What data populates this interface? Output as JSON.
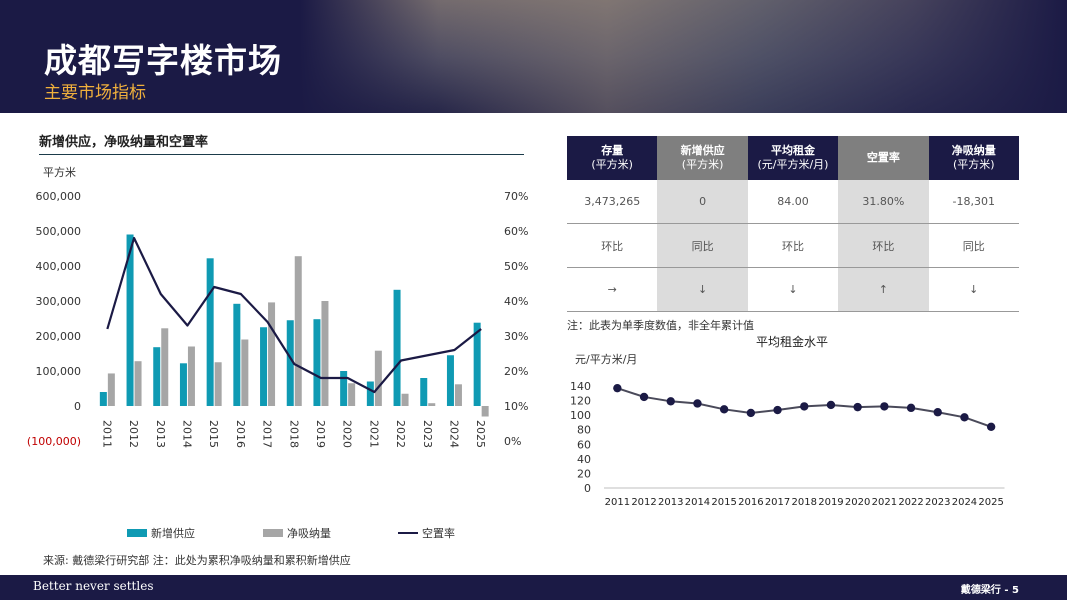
{
  "header": {
    "title": "成都写字楼市场",
    "subtitle": "主要市场指标"
  },
  "left_chart_title": "新增供应，净吸纳量和空置率",
  "colors": {
    "navy": "#1b1a45",
    "teal": "#0f9ab3",
    "grey": "#a6a6a6",
    "gold": "#f0b03c",
    "red": "#c00000"
  },
  "chart_data": [
    {
      "type": "bar",
      "categories": [
        "2011",
        "2012",
        "2013",
        "2014",
        "2015",
        "2016",
        "2017",
        "2018",
        "2019",
        "2020",
        "2021",
        "2022",
        "2023",
        "2024",
        "2025"
      ],
      "series": [
        {
          "name": "新增供应",
          "type": "bar",
          "axis": "left",
          "values": [
            40000,
            490000,
            168000,
            122000,
            422000,
            292000,
            225000,
            245000,
            248000,
            100000,
            70000,
            332000,
            80000,
            145000,
            238000
          ]
        },
        {
          "name": "净吸纳量",
          "type": "bar",
          "axis": "left",
          "values": [
            93000,
            128000,
            222000,
            170000,
            125000,
            190000,
            296000,
            428000,
            300000,
            65000,
            158000,
            35000,
            8000,
            62000,
            -30000
          ]
        },
        {
          "name": "空置率",
          "type": "line",
          "axis": "right",
          "values": [
            32,
            58,
            42,
            33,
            44,
            42,
            34,
            22,
            18,
            18,
            14,
            23,
            24.5,
            26,
            32
          ]
        }
      ],
      "ylabel": "平方米",
      "ylim": [
        -100000,
        600000
      ],
      "yticks": [
        "600,000",
        "500,000",
        "400,000",
        "300,000",
        "200,000",
        "100,000",
        "0",
        "(100,000)"
      ],
      "y2lim": [
        0,
        70
      ],
      "y2ticks": [
        "70%",
        "60%",
        "50%",
        "40%",
        "30%",
        "20%",
        "10%",
        "0%"
      ],
      "legend": "bottom"
    },
    {
      "type": "line",
      "title": "平均租金水平",
      "ylabel": "元/平方米/月",
      "categories": [
        "2011",
        "2012",
        "2013",
        "2014",
        "2015",
        "2016",
        "2017",
        "2018",
        "2019",
        "2020",
        "2021",
        "2022",
        "2023",
        "2024",
        "2025"
      ],
      "series": [
        {
          "values": [
            137,
            125,
            119,
            116,
            108,
            103,
            107,
            112,
            114,
            111,
            112,
            110,
            104,
            97,
            84
          ]
        }
      ],
      "ylim": [
        0,
        140
      ],
      "yticks": [
        "140",
        "120",
        "100",
        "80",
        "60",
        "40",
        "20",
        "0"
      ]
    }
  ],
  "legend": {
    "supply": "新增供应",
    "absorption": "净吸纳量",
    "vacancy": "空置率"
  },
  "table": {
    "headers": [
      {
        "label": "存量",
        "sub": "(平方米)"
      },
      {
        "label": "新增供应",
        "sub": "(平方米)"
      },
      {
        "label": "平均租金",
        "sub": "(元/平方米/月)"
      },
      {
        "label": "空置率",
        "sub": ""
      },
      {
        "label": "净吸纳量",
        "sub": "(平方米)"
      }
    ],
    "values": [
      "3,473,265",
      "0",
      "84.00",
      "31.80%",
      "-18,301"
    ],
    "compare": [
      "环比",
      "同比",
      "环比",
      "环比",
      "同比"
    ],
    "arrows": [
      "→",
      "↓",
      "↓",
      "↑",
      "↓"
    ]
  },
  "note": "注：此表为单季度数值，非全年累计值",
  "source": "来源: 戴德梁行研究部 注：此处为累积净吸纳量和累积新增供应",
  "footer": {
    "tagline": "Better never settles",
    "page": "戴德梁行 - 5"
  }
}
